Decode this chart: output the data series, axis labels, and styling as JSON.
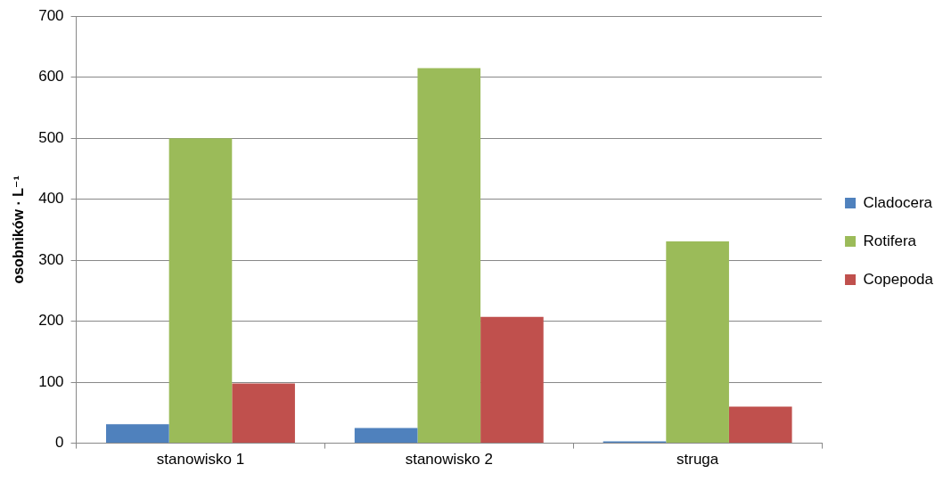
{
  "chart_data": {
    "type": "bar",
    "ylabel": "osobników · L⁻¹",
    "categories": [
      "stanowisko 1",
      "stanowisko 2",
      "struga"
    ],
    "series": [
      {
        "name": "Cladocera",
        "color": "#4f81bd",
        "values": [
          31,
          25,
          3
        ]
      },
      {
        "name": "Rotifera",
        "color": "#9bbb59",
        "values": [
          500,
          615,
          331
        ]
      },
      {
        "name": "Copepoda",
        "color": "#c0504d",
        "values": [
          98,
          207,
          60
        ]
      }
    ],
    "ylim": [
      0,
      700
    ],
    "yticks": [
      0,
      100,
      200,
      300,
      400,
      500,
      600,
      700
    ],
    "grid": "y",
    "legend": "right"
  }
}
